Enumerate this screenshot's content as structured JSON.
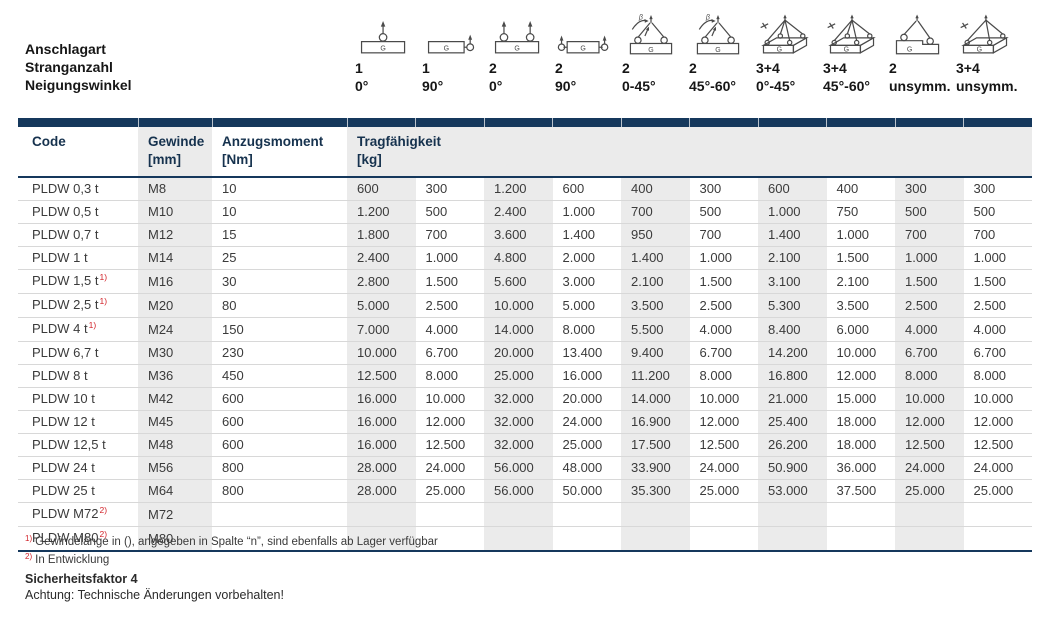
{
  "legend": {
    "row_labels": [
      "Anschlagart",
      "Stranganzahl",
      "Neigungswinkel"
    ],
    "columns": [
      {
        "icon": "ring-top",
        "strands": "1",
        "angle": "0°"
      },
      {
        "icon": "ring-side",
        "strands": "1",
        "angle": "90°"
      },
      {
        "icon": "two-rings-top",
        "strands": "2",
        "angle": "0°"
      },
      {
        "icon": "two-rings-side",
        "strands": "2",
        "angle": "90°"
      },
      {
        "icon": "two-sling-angle",
        "strands": "2",
        "angle": "0-45°"
      },
      {
        "icon": "two-sling-angle",
        "strands": "2",
        "angle": "45°-60°"
      },
      {
        "icon": "four-sling-3d",
        "strands": "3+4",
        "angle": "0°-45°"
      },
      {
        "icon": "four-sling-3d",
        "strands": "3+4",
        "angle": "45°-60°"
      },
      {
        "icon": "two-sling-unsym",
        "strands": "2",
        "angle": "unsymm."
      },
      {
        "icon": "four-sling-unsym-3d",
        "strands": "3+4",
        "angle": "unsymm."
      }
    ]
  },
  "table": {
    "headers": {
      "code": "Code",
      "thread": "Gewinde",
      "thread_unit": "[mm]",
      "torque": "Anzugsmoment",
      "torque_unit": "[Nm]",
      "capacity": "Tragfähigkeit",
      "capacity_unit": "[kg]"
    },
    "rows": [
      {
        "code": "PLDW 0,3 t",
        "sup": "",
        "thread": "M8",
        "torque": "10",
        "loads": [
          "600",
          "300",
          "1.200",
          "600",
          "400",
          "300",
          "600",
          "400",
          "300",
          "300"
        ]
      },
      {
        "code": "PLDW 0,5 t",
        "sup": "",
        "thread": "M10",
        "torque": "10",
        "loads": [
          "1.200",
          "500",
          "2.400",
          "1.000",
          "700",
          "500",
          "1.000",
          "750",
          "500",
          "500"
        ]
      },
      {
        "code": "PLDW 0,7 t",
        "sup": "",
        "thread": "M12",
        "torque": "15",
        "loads": [
          "1.800",
          "700",
          "3.600",
          "1.400",
          "950",
          "700",
          "1.400",
          "1.000",
          "700",
          "700"
        ]
      },
      {
        "code": "PLDW 1 t",
        "sup": "",
        "thread": "M14",
        "torque": "25",
        "loads": [
          "2.400",
          "1.000",
          "4.800",
          "2.000",
          "1.400",
          "1.000",
          "2.100",
          "1.500",
          "1.000",
          "1.000"
        ]
      },
      {
        "code": "PLDW 1,5 t",
        "sup": "1)",
        "thread": "M16",
        "torque": "30",
        "loads": [
          "2.800",
          "1.500",
          "5.600",
          "3.000",
          "2.100",
          "1.500",
          "3.100",
          "2.100",
          "1.500",
          "1.500"
        ]
      },
      {
        "code": "PLDW 2,5 t",
        "sup": "1)",
        "thread": "M20",
        "torque": "80",
        "loads": [
          "5.000",
          "2.500",
          "10.000",
          "5.000",
          "3.500",
          "2.500",
          "5.300",
          "3.500",
          "2.500",
          "2.500"
        ]
      },
      {
        "code": "PLDW 4 t",
        "sup": "1)",
        "thread": "M24",
        "torque": "150",
        "loads": [
          "7.000",
          "4.000",
          "14.000",
          "8.000",
          "5.500",
          "4.000",
          "8.400",
          "6.000",
          "4.000",
          "4.000"
        ]
      },
      {
        "code": "PLDW 6,7 t",
        "sup": "",
        "thread": "M30",
        "torque": "230",
        "loads": [
          "10.000",
          "6.700",
          "20.000",
          "13.400",
          "9.400",
          "6.700",
          "14.200",
          "10.000",
          "6.700",
          "6.700"
        ]
      },
      {
        "code": "PLDW 8 t",
        "sup": "",
        "thread": "M36",
        "torque": "450",
        "loads": [
          "12.500",
          "8.000",
          "25.000",
          "16.000",
          "11.200",
          "8.000",
          "16.800",
          "12.000",
          "8.000",
          "8.000"
        ]
      },
      {
        "code": "PLDW 10 t",
        "sup": "",
        "thread": "M42",
        "torque": "600",
        "loads": [
          "16.000",
          "10.000",
          "32.000",
          "20.000",
          "14.000",
          "10.000",
          "21.000",
          "15.000",
          "10.000",
          "10.000"
        ]
      },
      {
        "code": "PLDW 12 t",
        "sup": "",
        "thread": "M45",
        "torque": "600",
        "loads": [
          "16.000",
          "12.000",
          "32.000",
          "24.000",
          "16.900",
          "12.000",
          "25.400",
          "18.000",
          "12.000",
          "12.000"
        ]
      },
      {
        "code": "PLDW 12,5 t",
        "sup": "",
        "thread": "M48",
        "torque": "600",
        "loads": [
          "16.000",
          "12.500",
          "32.000",
          "25.000",
          "17.500",
          "12.500",
          "26.200",
          "18.000",
          "12.500",
          "12.500"
        ]
      },
      {
        "code": "PLDW 24 t",
        "sup": "",
        "thread": "M56",
        "torque": "800",
        "loads": [
          "28.000",
          "24.000",
          "56.000",
          "48.000",
          "33.900",
          "24.000",
          "50.900",
          "36.000",
          "24.000",
          "24.000"
        ]
      },
      {
        "code": "PLDW 25 t",
        "sup": "",
        "thread": "M64",
        "torque": "800",
        "loads": [
          "28.000",
          "25.000",
          "56.000",
          "50.000",
          "35.300",
          "25.000",
          "53.000",
          "37.500",
          "25.000",
          "25.000"
        ]
      },
      {
        "code": "PLDW M72",
        "sup": "2)",
        "thread": "M72",
        "torque": "",
        "loads": [
          "",
          "",
          "",
          "",
          "",
          "",
          "",
          "",
          "",
          ""
        ]
      },
      {
        "code": "PLDW M80",
        "sup": "2)",
        "thread": "M80",
        "torque": "",
        "loads": [
          "",
          "",
          "",
          "",
          "",
          "",
          "",
          "",
          "",
          ""
        ]
      }
    ]
  },
  "footnotes": [
    {
      "marker": "1)",
      "text": "Gewindelänge in (), angegeben in Spalte “n”, sind ebenfalls ab Lager verfügbar"
    },
    {
      "marker": "2)",
      "text": "In Entwicklung"
    }
  ],
  "safety": {
    "factor": "Sicherheitsfaktor 4",
    "notice": "Achtung: Technische Änderungen vorbehalten!"
  },
  "colors": {
    "navy": "#15385c",
    "stripe": "#ebebeb",
    "footnote_red": "#d2232a"
  }
}
